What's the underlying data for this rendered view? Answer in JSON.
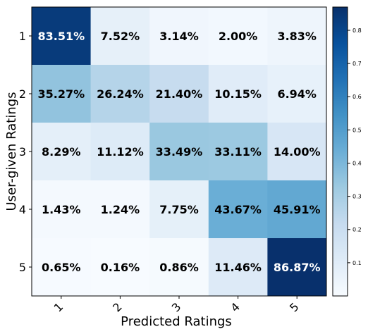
{
  "chart_data": {
    "type": "heatmap",
    "xlabel": "Predicted Ratings",
    "ylabel": "User-given Ratings",
    "x_categories": [
      "1",
      "2",
      "3",
      "4",
      "5"
    ],
    "y_categories": [
      "1",
      "2",
      "3",
      "4",
      "5"
    ],
    "values": [
      [
        0.8351,
        0.0752,
        0.0314,
        0.02,
        0.0383
      ],
      [
        0.3527,
        0.2624,
        0.214,
        0.1015,
        0.0694
      ],
      [
        0.0829,
        0.1112,
        0.3349,
        0.3311,
        0.14
      ],
      [
        0.0143,
        0.0124,
        0.0775,
        0.4367,
        0.4591
      ],
      [
        0.0065,
        0.0016,
        0.0086,
        0.1146,
        0.8687
      ]
    ],
    "cell_labels": [
      [
        "83.51%",
        "7.52%",
        "3.14%",
        "2.00%",
        "3.83%"
      ],
      [
        "35.27%",
        "26.24%",
        "21.40%",
        "10.15%",
        "6.94%"
      ],
      [
        "8.29%",
        "11.12%",
        "33.49%",
        "33.11%",
        "14.00%"
      ],
      [
        "1.43%",
        "1.24%",
        "7.75%",
        "43.67%",
        "45.91%"
      ],
      [
        "0.65%",
        "0.16%",
        "0.86%",
        "11.46%",
        "86.87%"
      ]
    ],
    "colorbar": {
      "colormap": "Blues",
      "range": [
        0,
        0.87
      ],
      "ticks": [
        "0.1",
        "0.2",
        "0.3",
        "0.4",
        "0.5",
        "0.6",
        "0.7",
        "0.8"
      ],
      "tick_values": [
        0.1,
        0.2,
        0.3,
        0.4,
        0.5,
        0.6,
        0.7,
        0.8
      ]
    },
    "grid": false
  }
}
